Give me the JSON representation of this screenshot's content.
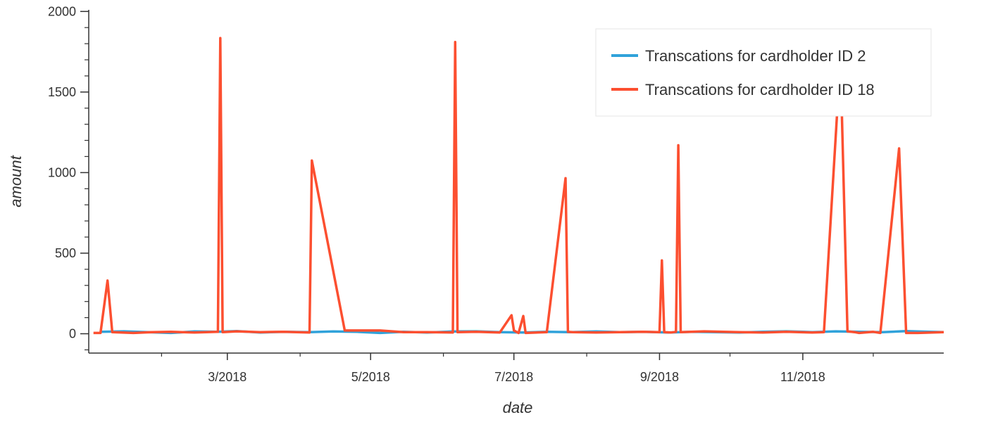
{
  "chart_data": {
    "type": "line",
    "title": "",
    "xlabel": "date",
    "ylabel": "amount",
    "x_axis_type": "date",
    "xlim": [
      "2018-01-01",
      "2018-12-31"
    ],
    "ylim": [
      -120,
      2010
    ],
    "x_ticks": [
      {
        "date": "2018-03-01",
        "label": "3/2018"
      },
      {
        "date": "2018-05-01",
        "label": "5/2018"
      },
      {
        "date": "2018-07-01",
        "label": "7/2018"
      },
      {
        "date": "2018-09-01",
        "label": "9/2018"
      },
      {
        "date": "2018-11-01",
        "label": "11/2018"
      }
    ],
    "y_ticks": [
      0,
      500,
      1000,
      1500,
      2000
    ],
    "grid": false,
    "legend_position": "top-right",
    "series": [
      {
        "name": "Transcations for cardholder ID 2",
        "color": "#30a2da",
        "x": [
          "2018-01-06",
          "2018-01-16",
          "2018-01-26",
          "2018-02-05",
          "2018-02-15",
          "2018-02-25",
          "2018-03-05",
          "2018-03-15",
          "2018-03-25",
          "2018-04-05",
          "2018-04-15",
          "2018-04-25",
          "2018-05-05",
          "2018-05-15",
          "2018-05-25",
          "2018-06-05",
          "2018-06-15",
          "2018-06-25",
          "2018-07-05",
          "2018-07-15",
          "2018-07-25",
          "2018-08-05",
          "2018-08-15",
          "2018-08-25",
          "2018-09-05",
          "2018-09-15",
          "2018-09-25",
          "2018-10-05",
          "2018-10-15",
          "2018-10-25",
          "2018-11-05",
          "2018-11-15",
          "2018-11-25",
          "2018-12-05",
          "2018-12-15",
          "2018-12-25",
          "2018-12-31"
        ],
        "y": [
          12,
          15,
          10,
          5,
          14,
          12,
          16,
          8,
          12,
          10,
          14,
          12,
          5,
          12,
          8,
          14,
          15,
          10,
          8,
          12,
          10,
          14,
          10,
          12,
          8,
          12,
          10,
          8,
          12,
          15,
          10,
          15,
          12,
          10,
          16,
          12,
          10
        ]
      },
      {
        "name": "Transcations for cardholder ID 18",
        "color": "#fc4f30",
        "x": [
          "2018-01-03",
          "2018-01-06",
          "2018-01-09",
          "2018-01-11",
          "2018-01-20",
          "2018-01-28",
          "2018-02-05",
          "2018-02-15",
          "2018-02-25",
          "2018-02-26",
          "2018-02-27",
          "2018-03-05",
          "2018-03-15",
          "2018-03-25",
          "2018-04-05",
          "2018-04-06",
          "2018-04-20",
          "2018-05-05",
          "2018-05-15",
          "2018-05-25",
          "2018-06-05",
          "2018-06-06",
          "2018-06-07",
          "2018-06-15",
          "2018-06-25",
          "2018-06-30",
          "2018-07-01",
          "2018-07-03",
          "2018-07-05",
          "2018-07-06",
          "2018-07-15",
          "2018-07-23",
          "2018-07-24",
          "2018-07-26",
          "2018-08-05",
          "2018-08-15",
          "2018-08-25",
          "2018-09-01",
          "2018-09-02",
          "2018-09-03",
          "2018-09-06",
          "2018-09-08",
          "2018-09-09",
          "2018-09-10",
          "2018-09-20",
          "2018-10-05",
          "2018-10-15",
          "2018-10-25",
          "2018-11-05",
          "2018-11-10",
          "2018-11-17",
          "2018-11-20",
          "2018-11-23",
          "2018-11-25",
          "2018-12-01",
          "2018-12-04",
          "2018-12-12",
          "2018-12-15",
          "2018-12-20",
          "2018-12-31"
        ],
        "y": [
          5,
          5,
          330,
          10,
          5,
          10,
          12,
          8,
          12,
          1835,
          10,
          15,
          10,
          12,
          8,
          1075,
          20,
          20,
          10,
          10,
          8,
          1810,
          10,
          12,
          8,
          115,
          20,
          5,
          110,
          5,
          10,
          965,
          12,
          10,
          8,
          10,
          12,
          10,
          455,
          10,
          8,
          12,
          1170,
          10,
          15,
          10,
          8,
          12,
          8,
          10,
          1710,
          15,
          10,
          5,
          12,
          5,
          1150,
          5,
          5,
          10
        ]
      }
    ]
  }
}
